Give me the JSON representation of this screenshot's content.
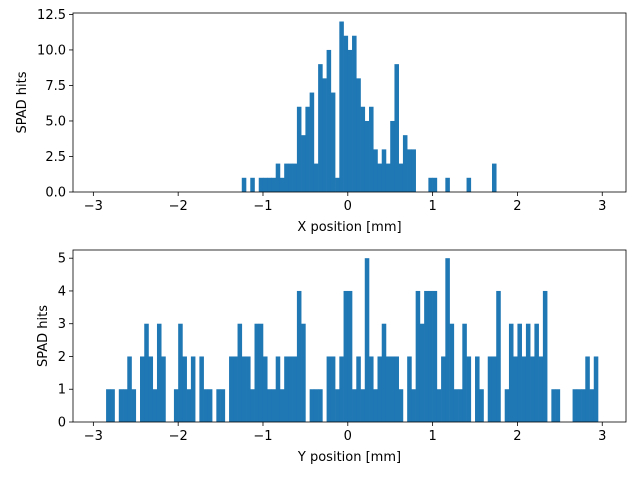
{
  "chart_data": [
    {
      "type": "bar",
      "xlabel": "X position [mm]",
      "ylabel": "SPAD hits",
      "xlim": [
        -3.24,
        3.28
      ],
      "ylim": [
        0,
        12.6
      ],
      "xticks": [
        -3,
        -2,
        -1,
        0,
        1,
        2,
        3
      ],
      "yticks": [
        0.0,
        2.5,
        5.0,
        7.5,
        10.0,
        12.5
      ],
      "ytick_labels": [
        "0.0",
        "2.5",
        "5.0",
        "7.5",
        "10.0",
        "12.5"
      ],
      "bin_width": 0.05,
      "grid": false,
      "bins": [
        {
          "x": -1.25,
          "y": 1
        },
        {
          "x": -1.15,
          "y": 1
        },
        {
          "x": -1.05,
          "y": 1
        },
        {
          "x": -1.0,
          "y": 1
        },
        {
          "x": -0.95,
          "y": 1
        },
        {
          "x": -0.9,
          "y": 1
        },
        {
          "x": -0.85,
          "y": 2
        },
        {
          "x": -0.8,
          "y": 1
        },
        {
          "x": -0.75,
          "y": 2
        },
        {
          "x": -0.7,
          "y": 2
        },
        {
          "x": -0.65,
          "y": 2
        },
        {
          "x": -0.6,
          "y": 6
        },
        {
          "x": -0.55,
          "y": 4
        },
        {
          "x": -0.5,
          "y": 6
        },
        {
          "x": -0.45,
          "y": 7
        },
        {
          "x": -0.4,
          "y": 2
        },
        {
          "x": -0.35,
          "y": 9
        },
        {
          "x": -0.3,
          "y": 8
        },
        {
          "x": -0.25,
          "y": 10
        },
        {
          "x": -0.2,
          "y": 7
        },
        {
          "x": -0.15,
          "y": 1
        },
        {
          "x": -0.1,
          "y": 12
        },
        {
          "x": -0.05,
          "y": 11
        },
        {
          "x": 0.0,
          "y": 10
        },
        {
          "x": 0.05,
          "y": 11
        },
        {
          "x": 0.1,
          "y": 8
        },
        {
          "x": 0.15,
          "y": 6
        },
        {
          "x": 0.2,
          "y": 5
        },
        {
          "x": 0.25,
          "y": 6
        },
        {
          "x": 0.3,
          "y": 3
        },
        {
          "x": 0.35,
          "y": 2
        },
        {
          "x": 0.4,
          "y": 3
        },
        {
          "x": 0.45,
          "y": 2
        },
        {
          "x": 0.5,
          "y": 5
        },
        {
          "x": 0.55,
          "y": 9
        },
        {
          "x": 0.6,
          "y": 2
        },
        {
          "x": 0.65,
          "y": 4
        },
        {
          "x": 0.7,
          "y": 3
        },
        {
          "x": 0.75,
          "y": 3
        },
        {
          "x": 0.95,
          "y": 1
        },
        {
          "x": 1.0,
          "y": 1
        },
        {
          "x": 1.15,
          "y": 1
        },
        {
          "x": 1.4,
          "y": 1
        },
        {
          "x": 1.7,
          "y": 2
        }
      ]
    },
    {
      "type": "bar",
      "xlabel": "Y position [mm]",
      "ylabel": "SPAD hits",
      "xlim": [
        -3.24,
        3.28
      ],
      "ylim": [
        0,
        5.25
      ],
      "xticks": [
        -3,
        -2,
        -1,
        0,
        1,
        2,
        3
      ],
      "yticks": [
        0,
        1,
        2,
        3,
        4,
        5
      ],
      "ytick_labels": [
        "0",
        "1",
        "2",
        "3",
        "4",
        "5"
      ],
      "bin_width": 0.05,
      "grid": false,
      "bins": [
        {
          "x": -2.85,
          "y": 1
        },
        {
          "x": -2.8,
          "y": 1
        },
        {
          "x": -2.7,
          "y": 1
        },
        {
          "x": -2.65,
          "y": 1
        },
        {
          "x": -2.6,
          "y": 2
        },
        {
          "x": -2.55,
          "y": 1
        },
        {
          "x": -2.45,
          "y": 2
        },
        {
          "x": -2.4,
          "y": 3
        },
        {
          "x": -2.35,
          "y": 2
        },
        {
          "x": -2.3,
          "y": 1
        },
        {
          "x": -2.25,
          "y": 3
        },
        {
          "x": -2.2,
          "y": 2
        },
        {
          "x": -2.05,
          "y": 1
        },
        {
          "x": -2.0,
          "y": 3
        },
        {
          "x": -1.95,
          "y": 2
        },
        {
          "x": -1.9,
          "y": 1
        },
        {
          "x": -1.85,
          "y": 2
        },
        {
          "x": -1.75,
          "y": 2
        },
        {
          "x": -1.7,
          "y": 1
        },
        {
          "x": -1.65,
          "y": 1
        },
        {
          "x": -1.55,
          "y": 1
        },
        {
          "x": -1.5,
          "y": 1
        },
        {
          "x": -1.4,
          "y": 2
        },
        {
          "x": -1.35,
          "y": 2
        },
        {
          "x": -1.3,
          "y": 3
        },
        {
          "x": -1.25,
          "y": 2
        },
        {
          "x": -1.2,
          "y": 2
        },
        {
          "x": -1.15,
          "y": 1
        },
        {
          "x": -1.1,
          "y": 3
        },
        {
          "x": -1.05,
          "y": 3
        },
        {
          "x": -1.0,
          "y": 2
        },
        {
          "x": -0.95,
          "y": 1
        },
        {
          "x": -0.9,
          "y": 1
        },
        {
          "x": -0.85,
          "y": 2
        },
        {
          "x": -0.8,
          "y": 1
        },
        {
          "x": -0.75,
          "y": 2
        },
        {
          "x": -0.7,
          "y": 2
        },
        {
          "x": -0.65,
          "y": 2
        },
        {
          "x": -0.6,
          "y": 4
        },
        {
          "x": -0.55,
          "y": 3
        },
        {
          "x": -0.45,
          "y": 1
        },
        {
          "x": -0.4,
          "y": 1
        },
        {
          "x": -0.35,
          "y": 1
        },
        {
          "x": -0.25,
          "y": 2
        },
        {
          "x": -0.2,
          "y": 2
        },
        {
          "x": -0.15,
          "y": 1
        },
        {
          "x": -0.1,
          "y": 2
        },
        {
          "x": -0.05,
          "y": 4
        },
        {
          "x": 0.0,
          "y": 4
        },
        {
          "x": 0.05,
          "y": 1
        },
        {
          "x": 0.1,
          "y": 2
        },
        {
          "x": 0.15,
          "y": 1
        },
        {
          "x": 0.2,
          "y": 5
        },
        {
          "x": 0.25,
          "y": 2
        },
        {
          "x": 0.3,
          "y": 1
        },
        {
          "x": 0.35,
          "y": 2
        },
        {
          "x": 0.4,
          "y": 3
        },
        {
          "x": 0.45,
          "y": 2
        },
        {
          "x": 0.5,
          "y": 2
        },
        {
          "x": 0.55,
          "y": 2
        },
        {
          "x": 0.6,
          "y": 1
        },
        {
          "x": 0.7,
          "y": 2
        },
        {
          "x": 0.75,
          "y": 1
        },
        {
          "x": 0.8,
          "y": 4
        },
        {
          "x": 0.85,
          "y": 3
        },
        {
          "x": 0.9,
          "y": 4
        },
        {
          "x": 0.95,
          "y": 4
        },
        {
          "x": 1.0,
          "y": 4
        },
        {
          "x": 1.05,
          "y": 1
        },
        {
          "x": 1.1,
          "y": 2
        },
        {
          "x": 1.15,
          "y": 5
        },
        {
          "x": 1.2,
          "y": 3
        },
        {
          "x": 1.25,
          "y": 1
        },
        {
          "x": 1.3,
          "y": 1
        },
        {
          "x": 1.35,
          "y": 3
        },
        {
          "x": 1.4,
          "y": 2
        },
        {
          "x": 1.5,
          "y": 2
        },
        {
          "x": 1.55,
          "y": 1
        },
        {
          "x": 1.65,
          "y": 2
        },
        {
          "x": 1.7,
          "y": 2
        },
        {
          "x": 1.75,
          "y": 4
        },
        {
          "x": 1.85,
          "y": 1
        },
        {
          "x": 1.9,
          "y": 3
        },
        {
          "x": 1.95,
          "y": 2
        },
        {
          "x": 2.0,
          "y": 3
        },
        {
          "x": 2.05,
          "y": 2
        },
        {
          "x": 2.1,
          "y": 3
        },
        {
          "x": 2.15,
          "y": 2
        },
        {
          "x": 2.2,
          "y": 3
        },
        {
          "x": 2.25,
          "y": 2
        },
        {
          "x": 2.3,
          "y": 4
        },
        {
          "x": 2.4,
          "y": 1
        },
        {
          "x": 2.45,
          "y": 1
        },
        {
          "x": 2.65,
          "y": 1
        },
        {
          "x": 2.7,
          "y": 1
        },
        {
          "x": 2.75,
          "y": 1
        },
        {
          "x": 2.8,
          "y": 2
        },
        {
          "x": 2.85,
          "y": 1
        },
        {
          "x": 2.9,
          "y": 2
        }
      ]
    }
  ]
}
